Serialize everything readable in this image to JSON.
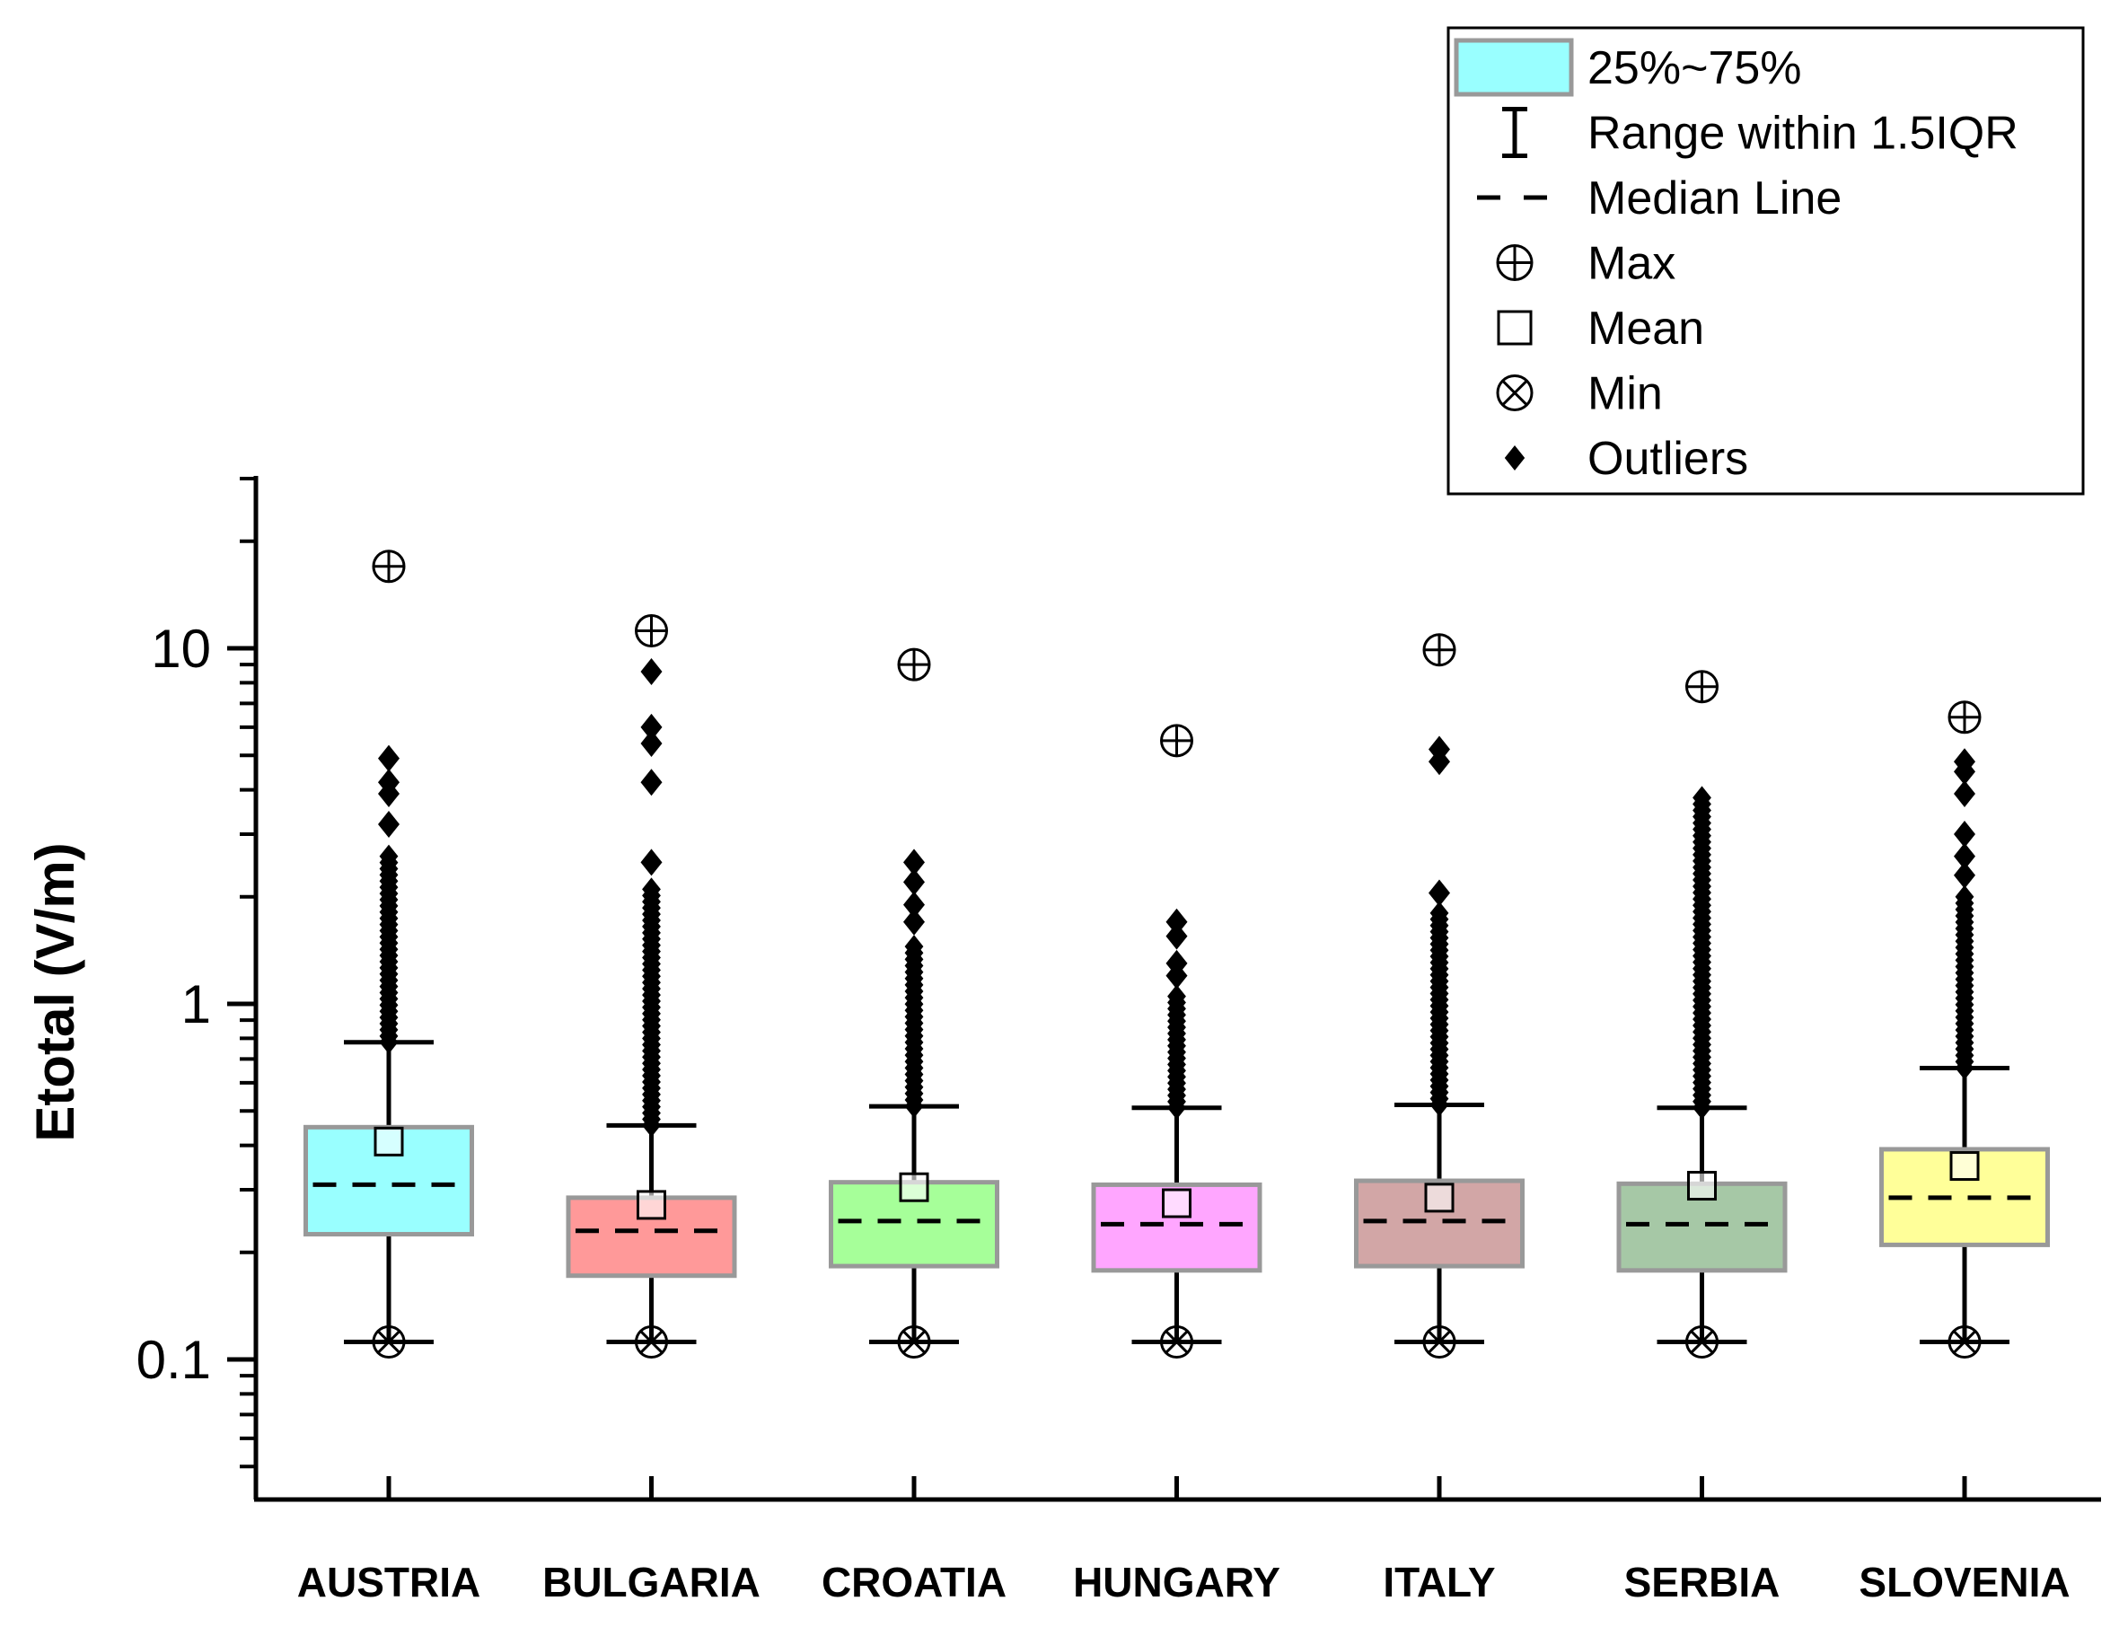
{
  "chart_data": {
    "type": "box",
    "title": "",
    "xlabel": "",
    "ylabel": "Etotal (V/m)",
    "yscale": "log",
    "ylim": [
      0.045,
      30
    ],
    "yticks": [
      {
        "value": 0.1,
        "label": "0.1"
      },
      {
        "value": 1,
        "label": "1"
      },
      {
        "value": 10,
        "label": "10"
      }
    ],
    "legend": {
      "position": "top-right",
      "entries": [
        {
          "key": "box",
          "label": "25%~75%"
        },
        {
          "key": "whisker",
          "label": "Range within 1.5IQR"
        },
        {
          "key": "median",
          "label": "Median Line"
        },
        {
          "key": "max",
          "label": "Max"
        },
        {
          "key": "mean",
          "label": "Mean"
        },
        {
          "key": "min",
          "label": "Min"
        },
        {
          "key": "outliers",
          "label": "Outliers"
        }
      ]
    },
    "series": [
      {
        "name": "AUSTRIA",
        "color": "#99ffff",
        "q1": 0.225,
        "median": 0.31,
        "q3": 0.45,
        "mean": 0.41,
        "whisker_low": 0.112,
        "whisker_high": 0.78,
        "min": 0.112,
        "max": 17.0,
        "outlier_range": [
          0.78,
          2.6
        ],
        "outliers": [
          3.2,
          3.9,
          4.2,
          4.9
        ]
      },
      {
        "name": "BULGARIA",
        "color": "#ff9999",
        "q1": 0.172,
        "median": 0.23,
        "q3": 0.285,
        "mean": 0.272,
        "whisker_low": 0.112,
        "whisker_high": 0.455,
        "min": 0.112,
        "max": 11.2,
        "outlier_range": [
          0.455,
          2.1
        ],
        "outliers": [
          2.5,
          4.2,
          5.4,
          6.0,
          8.6
        ]
      },
      {
        "name": "CROATIA",
        "color": "#a6ff99",
        "q1": 0.183,
        "median": 0.245,
        "q3": 0.315,
        "mean": 0.305,
        "whisker_low": 0.112,
        "whisker_high": 0.515,
        "min": 0.112,
        "max": 9.0,
        "outlier_range": [
          0.515,
          1.45
        ],
        "outliers": [
          1.7,
          1.9,
          2.2,
          2.5
        ]
      },
      {
        "name": "HUNGARY",
        "color": "#ffa6ff",
        "q1": 0.178,
        "median": 0.24,
        "q3": 0.31,
        "mean": 0.275,
        "whisker_low": 0.112,
        "whisker_high": 0.51,
        "min": 0.112,
        "max": 5.5,
        "outlier_range": [
          0.51,
          1.05
        ],
        "outliers": [
          1.2,
          1.3,
          1.55,
          1.7
        ]
      },
      {
        "name": "ITALY",
        "color": "#d2a6a6",
        "q1": 0.183,
        "median": 0.245,
        "q3": 0.318,
        "mean": 0.285,
        "whisker_low": 0.112,
        "whisker_high": 0.52,
        "min": 0.112,
        "max": 9.9,
        "outlier_range": [
          0.52,
          1.8
        ],
        "outliers": [
          2.05,
          4.8,
          5.2
        ]
      },
      {
        "name": "SERBIA",
        "color": "#a6c8a6",
        "q1": 0.178,
        "median": 0.24,
        "q3": 0.312,
        "mean": 0.308,
        "whisker_low": 0.112,
        "whisker_high": 0.51,
        "min": 0.112,
        "max": 7.8,
        "outlier_range": [
          0.51,
          3.8
        ],
        "outliers": []
      },
      {
        "name": "SLOVENIA",
        "color": "#ffff99",
        "q1": 0.21,
        "median": 0.285,
        "q3": 0.39,
        "mean": 0.35,
        "whisker_low": 0.112,
        "whisker_high": 0.66,
        "min": 0.112,
        "max": 6.4,
        "outlier_range": [
          0.66,
          2.0
        ],
        "outliers": [
          2.3,
          2.6,
          3.0,
          3.9,
          4.5,
          4.8
        ]
      }
    ]
  }
}
